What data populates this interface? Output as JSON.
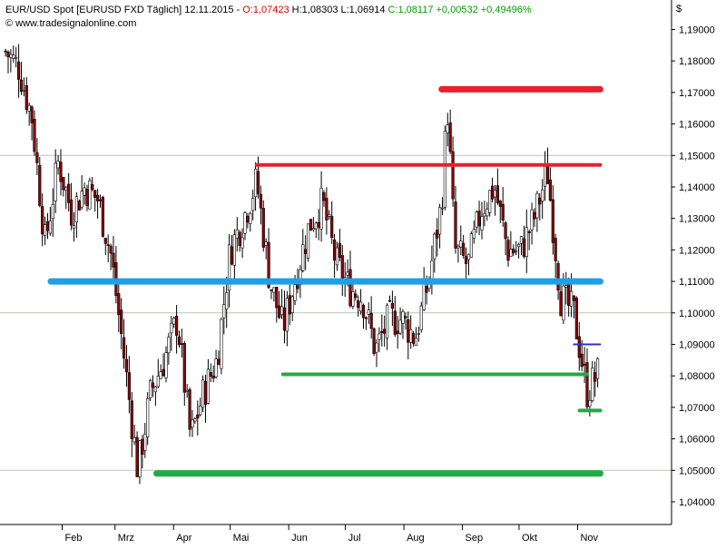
{
  "header": {
    "instrument": "EUR/USD Spot [EURUSD FXD  Täglich] 12.11.2015 - ",
    "open": "O:1,07423",
    "high_low": " H:1,08303 L:1,06914 ",
    "close": "C:1,08117 +0,00532 +0,49496%",
    "source": "www.tradesignalonline.com",
    "currency_symbol": "$"
  },
  "chart_data": {
    "type": "candlestick",
    "title": "",
    "currency": "$",
    "ylim": [
      1.035,
      1.198
    ],
    "y_ticks": [
      "1,04000",
      "1,05000",
      "1,06000",
      "1,07000",
      "1,08000",
      "1,09000",
      "1,10000",
      "1,11000",
      "1,12000",
      "1,13000",
      "1,14000",
      "1,15000",
      "1,16000",
      "1,17000",
      "1,18000",
      "1,19000"
    ],
    "x_ticks": [
      "Feb",
      "Mrz",
      "Apr",
      "Mai",
      "Jun",
      "Jul",
      "Aug",
      "Sep",
      "Okt",
      "Nov"
    ],
    "gridlines_y": [
      1.05,
      1.1,
      1.15
    ],
    "approx_close_path": [
      [
        "2015-01-02",
        1.183
      ],
      [
        "2015-01-09",
        1.178
      ],
      [
        "2015-01-16",
        1.162
      ],
      [
        "2015-01-23",
        1.122
      ],
      [
        "2015-01-30",
        1.148
      ],
      [
        "2015-02-06",
        1.132
      ],
      [
        "2015-02-13",
        1.14
      ],
      [
        "2015-02-20",
        1.136
      ],
      [
        "2015-02-27",
        1.118
      ],
      [
        "2015-03-06",
        1.085
      ],
      [
        "2015-03-13",
        1.05
      ],
      [
        "2015-03-20",
        1.075
      ],
      [
        "2015-03-27",
        1.085
      ],
      [
        "2015-04-03",
        1.098
      ],
      [
        "2015-04-10",
        1.06
      ],
      [
        "2015-04-17",
        1.075
      ],
      [
        "2015-04-24",
        1.085
      ],
      [
        "2015-05-01",
        1.12
      ],
      [
        "2015-05-08",
        1.13
      ],
      [
        "2015-05-15",
        1.142
      ],
      [
        "2015-05-22",
        1.11
      ],
      [
        "2015-05-29",
        1.095
      ],
      [
        "2015-06-05",
        1.112
      ],
      [
        "2015-06-12",
        1.128
      ],
      [
        "2015-06-19",
        1.135
      ],
      [
        "2015-06-26",
        1.116
      ],
      [
        "2015-07-03",
        1.108
      ],
      [
        "2015-07-10",
        1.105
      ],
      [
        "2015-07-17",
        1.088
      ],
      [
        "2015-07-24",
        1.098
      ],
      [
        "2015-07-31",
        1.098
      ],
      [
        "2015-08-07",
        1.092
      ],
      [
        "2015-08-14",
        1.11
      ],
      [
        "2015-08-21",
        1.135
      ],
      [
        "2015-08-24",
        1.166
      ],
      [
        "2015-08-28",
        1.12
      ],
      [
        "2015-09-04",
        1.115
      ],
      [
        "2015-09-11",
        1.133
      ],
      [
        "2015-09-18",
        1.14
      ],
      [
        "2015-09-25",
        1.12
      ],
      [
        "2015-10-02",
        1.12
      ],
      [
        "2015-10-09",
        1.13
      ],
      [
        "2015-10-16",
        1.145
      ],
      [
        "2015-10-23",
        1.105
      ],
      [
        "2015-10-30",
        1.1
      ],
      [
        "2015-11-06",
        1.075
      ],
      [
        "2015-11-12",
        1.081
      ]
    ],
    "horizontal_lines": [
      {
        "name": "red-resistance-upper",
        "level": 1.171,
        "color": "#e8202a",
        "from": "2015-08-21",
        "to": "2015-11-13",
        "width": "thick"
      },
      {
        "name": "red-resistance",
        "level": 1.147,
        "color": "#e8202a",
        "from": "2015-05-15",
        "to": "2015-11-13",
        "width": "medium"
      },
      {
        "name": "blue-support-resistance",
        "level": 1.11,
        "color": "#1ea0e6",
        "from": "2015-01-26",
        "to": "2015-11-13",
        "width": "thick"
      },
      {
        "name": "navy-level",
        "level": 1.09,
        "color": "#3030c8",
        "from": "2015-10-30",
        "to": "2015-11-13",
        "width": "thin"
      },
      {
        "name": "green-support-mid",
        "level": 1.0805,
        "color": "#22aa44",
        "from": "2015-05-29",
        "to": "2015-11-06",
        "width": "medium"
      },
      {
        "name": "green-support-recent",
        "level": 1.069,
        "color": "#22aa44",
        "from": "2015-11-02",
        "to": "2015-11-13",
        "width": "medium"
      },
      {
        "name": "green-support-lower",
        "level": 1.049,
        "color": "#22aa44",
        "from": "2015-03-23",
        "to": "2015-11-13",
        "width": "thick"
      }
    ],
    "colors": {
      "up": "#ffffff",
      "down": "#8b0000",
      "wick": "#000000"
    }
  }
}
